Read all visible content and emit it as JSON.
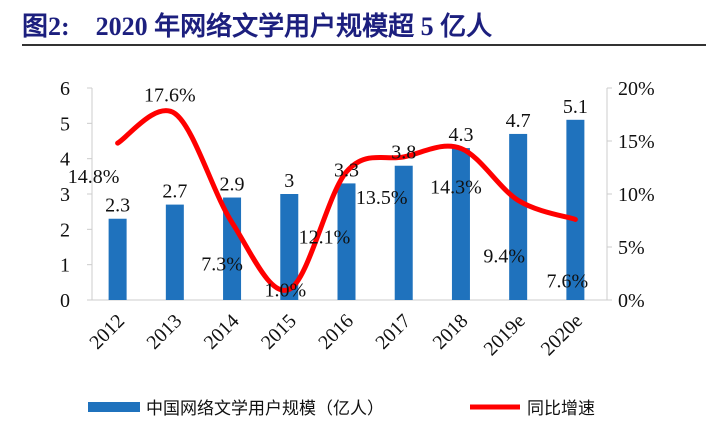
{
  "title": "图2:    2020 年网络文学用户规模超 5 亿人",
  "chart_data": {
    "type": "bar+line",
    "title": "2020 年网络文学用户规模超 5 亿人",
    "categories": [
      "2012",
      "2013",
      "2014",
      "2015",
      "2016",
      "2017",
      "2018",
      "2019e",
      "2020e"
    ],
    "series": [
      {
        "name": "中国网络文学用户规模（亿人）",
        "type": "bar",
        "axis": "left",
        "color": "#1f72bd",
        "values": [
          2.3,
          2.7,
          2.9,
          3,
          3.3,
          3.8,
          4.3,
          4.7,
          5.1
        ],
        "labels": [
          "2.3",
          "2.7",
          "2.9",
          "3",
          "3.3",
          "3.8",
          "4.3",
          "4.7",
          "5.1"
        ]
      },
      {
        "name": "同比增速",
        "type": "line",
        "axis": "right",
        "color": "#ff0000",
        "smooth": true,
        "values": [
          14.8,
          17.6,
          7.3,
          1.0,
          12.1,
          13.5,
          14.3,
          9.4,
          7.6
        ],
        "labels": [
          "14.8%",
          "17.6%",
          "7.3%",
          "1.0%",
          "12.1%",
          "13.5%",
          "14.3%",
          "9.4%",
          "7.6%"
        ]
      }
    ],
    "y_left": {
      "range": [
        0,
        6
      ],
      "ticks": [
        "0",
        "1",
        "2",
        "3",
        "4",
        "5",
        "6"
      ]
    },
    "y_right": {
      "range": [
        0,
        20
      ],
      "ticks": [
        "0%",
        "5%",
        "10%",
        "15%",
        "20%"
      ]
    },
    "grid": false,
    "legend": "bottom"
  }
}
